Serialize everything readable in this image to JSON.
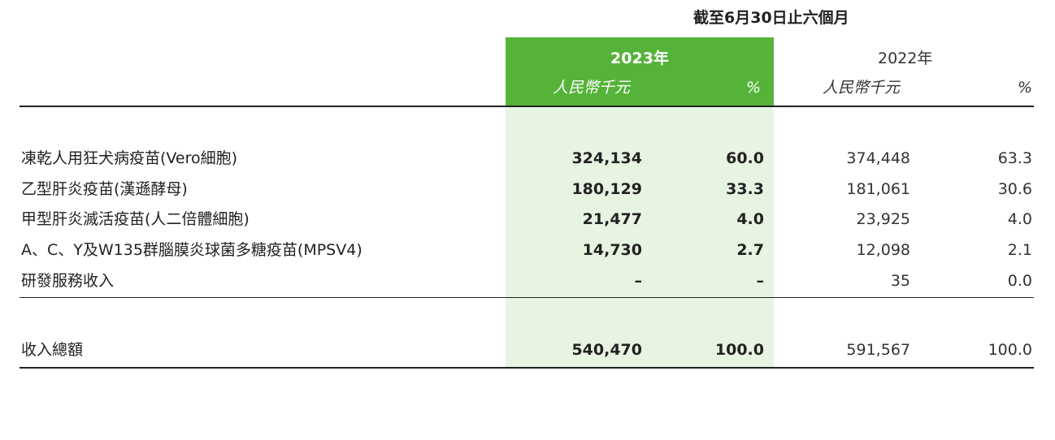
{
  "header": {
    "period": "截至6月30日止六個月",
    "year_2023": "2023年",
    "unit_2023": "人民幣千元",
    "pct_2023": "%",
    "year_2022": "2022年",
    "unit_2022": "人民幣千元",
    "pct_2022": "%"
  },
  "rows": [
    {
      "label": "凍乾人用狂犬病疫苗(Vero細胞)",
      "v2023": "324,134",
      "p2023": "60.0",
      "v2022": "374,448",
      "p2022": "63.3"
    },
    {
      "label": "乙型肝炎疫苗(漢遜酵母)",
      "v2023": "180,129",
      "p2023": "33.3",
      "v2022": "181,061",
      "p2022": "30.6"
    },
    {
      "label": "甲型肝炎滅活疫苗(人二倍體細胞)",
      "v2023": "21,477",
      "p2023": "4.0",
      "v2022": "23,925",
      "p2022": "4.0"
    },
    {
      "label": "A、C、Y及W135群腦膜炎球菌多糖疫苗(MPSV4)",
      "v2023": "14,730",
      "p2023": "2.7",
      "v2022": "12,098",
      "p2022": "2.1"
    },
    {
      "label": "研發服務收入",
      "v2023": "–",
      "p2023": "–",
      "v2022": "35",
      "p2022": "0.0"
    }
  ],
  "total": {
    "label": "收入總額",
    "v2023": "540,470",
    "p2023": "100.0",
    "v2022": "591,567",
    "p2022": "100.0"
  },
  "colors": {
    "highlight_header": "#55b33a",
    "highlight_body": "#e8f4e2"
  }
}
